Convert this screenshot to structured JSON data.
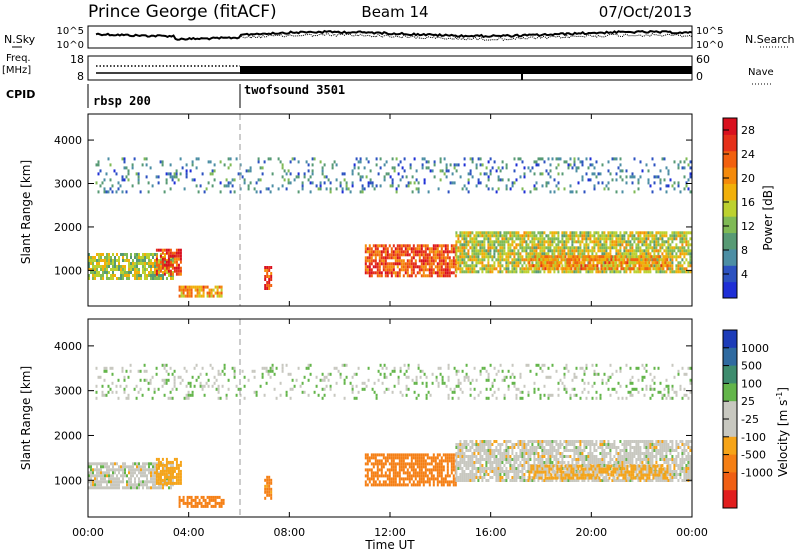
{
  "header": {
    "station": "Prince George (fitACF)",
    "beam": "Beam 14",
    "date": "07/Oct/2013"
  },
  "top_panels": {
    "nsky": {
      "left_label": "N.Sky",
      "left_ticks": [
        "10^5",
        "10^0"
      ],
      "right_ticks": [
        "10^5",
        "10^0"
      ],
      "right_label": "N.Search"
    },
    "freq": {
      "left_label": "Freq.",
      "left_unit": "[MHz]",
      "left_ticks": [
        "18",
        "8"
      ],
      "right_ticks": [
        "60",
        "0"
      ],
      "right_label": "Nave"
    },
    "cpid": {
      "label": "CPID",
      "modes": [
        {
          "name": "rbsp 200",
          "start_hour": 0,
          "end_hour": 6
        },
        {
          "name": "twofsound 3501",
          "start_hour": 6,
          "end_hour": 24
        }
      ]
    }
  },
  "power_panel": {
    "ylabel": "Slant Range [km]",
    "yticks": [
      "1000",
      "2000",
      "3000",
      "4000"
    ],
    "colorbar": {
      "label": "Power [dB]",
      "ticks": [
        "4",
        "8",
        "12",
        "16",
        "20",
        "24",
        "28"
      ],
      "colors": [
        "#1f2fd6",
        "#2c52c0",
        "#4c8ea4",
        "#579a74",
        "#7fba55",
        "#bcd12f",
        "#f1b00a",
        "#f48a0b",
        "#f2600e",
        "#e53019",
        "#d9101e"
      ]
    }
  },
  "velocity_panel": {
    "ylabel": "Slant Range [km]",
    "yticks": [
      "1000",
      "2000",
      "3000",
      "4000"
    ],
    "colorbar": {
      "label": "Velocity [m s^-1]",
      "ticks": [
        "1000",
        "500",
        "100",
        "25",
        "-25",
        "-100",
        "-500",
        "-1000"
      ],
      "colors": [
        "#1d3cb8",
        "#2f6aa0",
        "#3e8c6e",
        "#63b54a",
        "#c8c8c0",
        "#c8c8c0",
        "#f6a418",
        "#f57f14",
        "#f05f14",
        "#e11e1e"
      ]
    }
  },
  "time_axis": {
    "label": "Time UT",
    "ticks": [
      "00:00",
      "04:00",
      "08:00",
      "12:00",
      "16:00",
      "20:00",
      "00:00"
    ]
  },
  "chart_data": {
    "type": "heatmap",
    "title": "Prince George (fitACF)",
    "subtitle": "Beam 14",
    "date": "07/Oct/2013",
    "xlabel": "Time UT",
    "ylabel": "Slant Range [km]",
    "xlim_hours": [
      0,
      24
    ],
    "ylim_km": [
      180,
      4600
    ],
    "mode_change_hour": 6,
    "panels": [
      {
        "name": "Power",
        "quantity_label": "Power [dB]",
        "range": [
          0,
          30
        ]
      },
      {
        "name": "Velocity",
        "quantity_label": "Velocity [m s^-1]",
        "range": [
          -1000,
          1000
        ]
      }
    ],
    "approximate_echo_regions": [
      {
        "start_hour": 0.0,
        "end_hour": 3.4,
        "range_km": [
          800,
          1400
        ],
        "power_db": 14,
        "velocity": 0
      },
      {
        "start_hour": 2.7,
        "end_hour": 3.7,
        "range_km": [
          900,
          1500
        ],
        "power_db": 26,
        "velocity": -60
      },
      {
        "start_hour": 3.6,
        "end_hour": 5.4,
        "range_km": [
          400,
          650
        ],
        "power_db": 20,
        "velocity": -220
      },
      {
        "start_hour": 7.0,
        "end_hour": 7.3,
        "range_km": [
          600,
          1100
        ],
        "power_db": 25,
        "velocity": -120
      },
      {
        "start_hour": 11.0,
        "end_hour": 14.6,
        "range_km": [
          900,
          1600
        ],
        "power_db": 24,
        "velocity": -200
      },
      {
        "start_hour": 14.6,
        "end_hour": 24.0,
        "range_km": [
          1000,
          1900
        ],
        "power_db": 15,
        "velocity": 0
      },
      {
        "start_hour": 17.5,
        "end_hour": 23.0,
        "range_km": [
          1050,
          1350
        ],
        "power_db": 20,
        "velocity": -40
      },
      {
        "start_hour": 0.3,
        "end_hour": 24.0,
        "range_km": [
          2800,
          3600
        ],
        "power_db": 7,
        "velocity": 20
      }
    ]
  }
}
